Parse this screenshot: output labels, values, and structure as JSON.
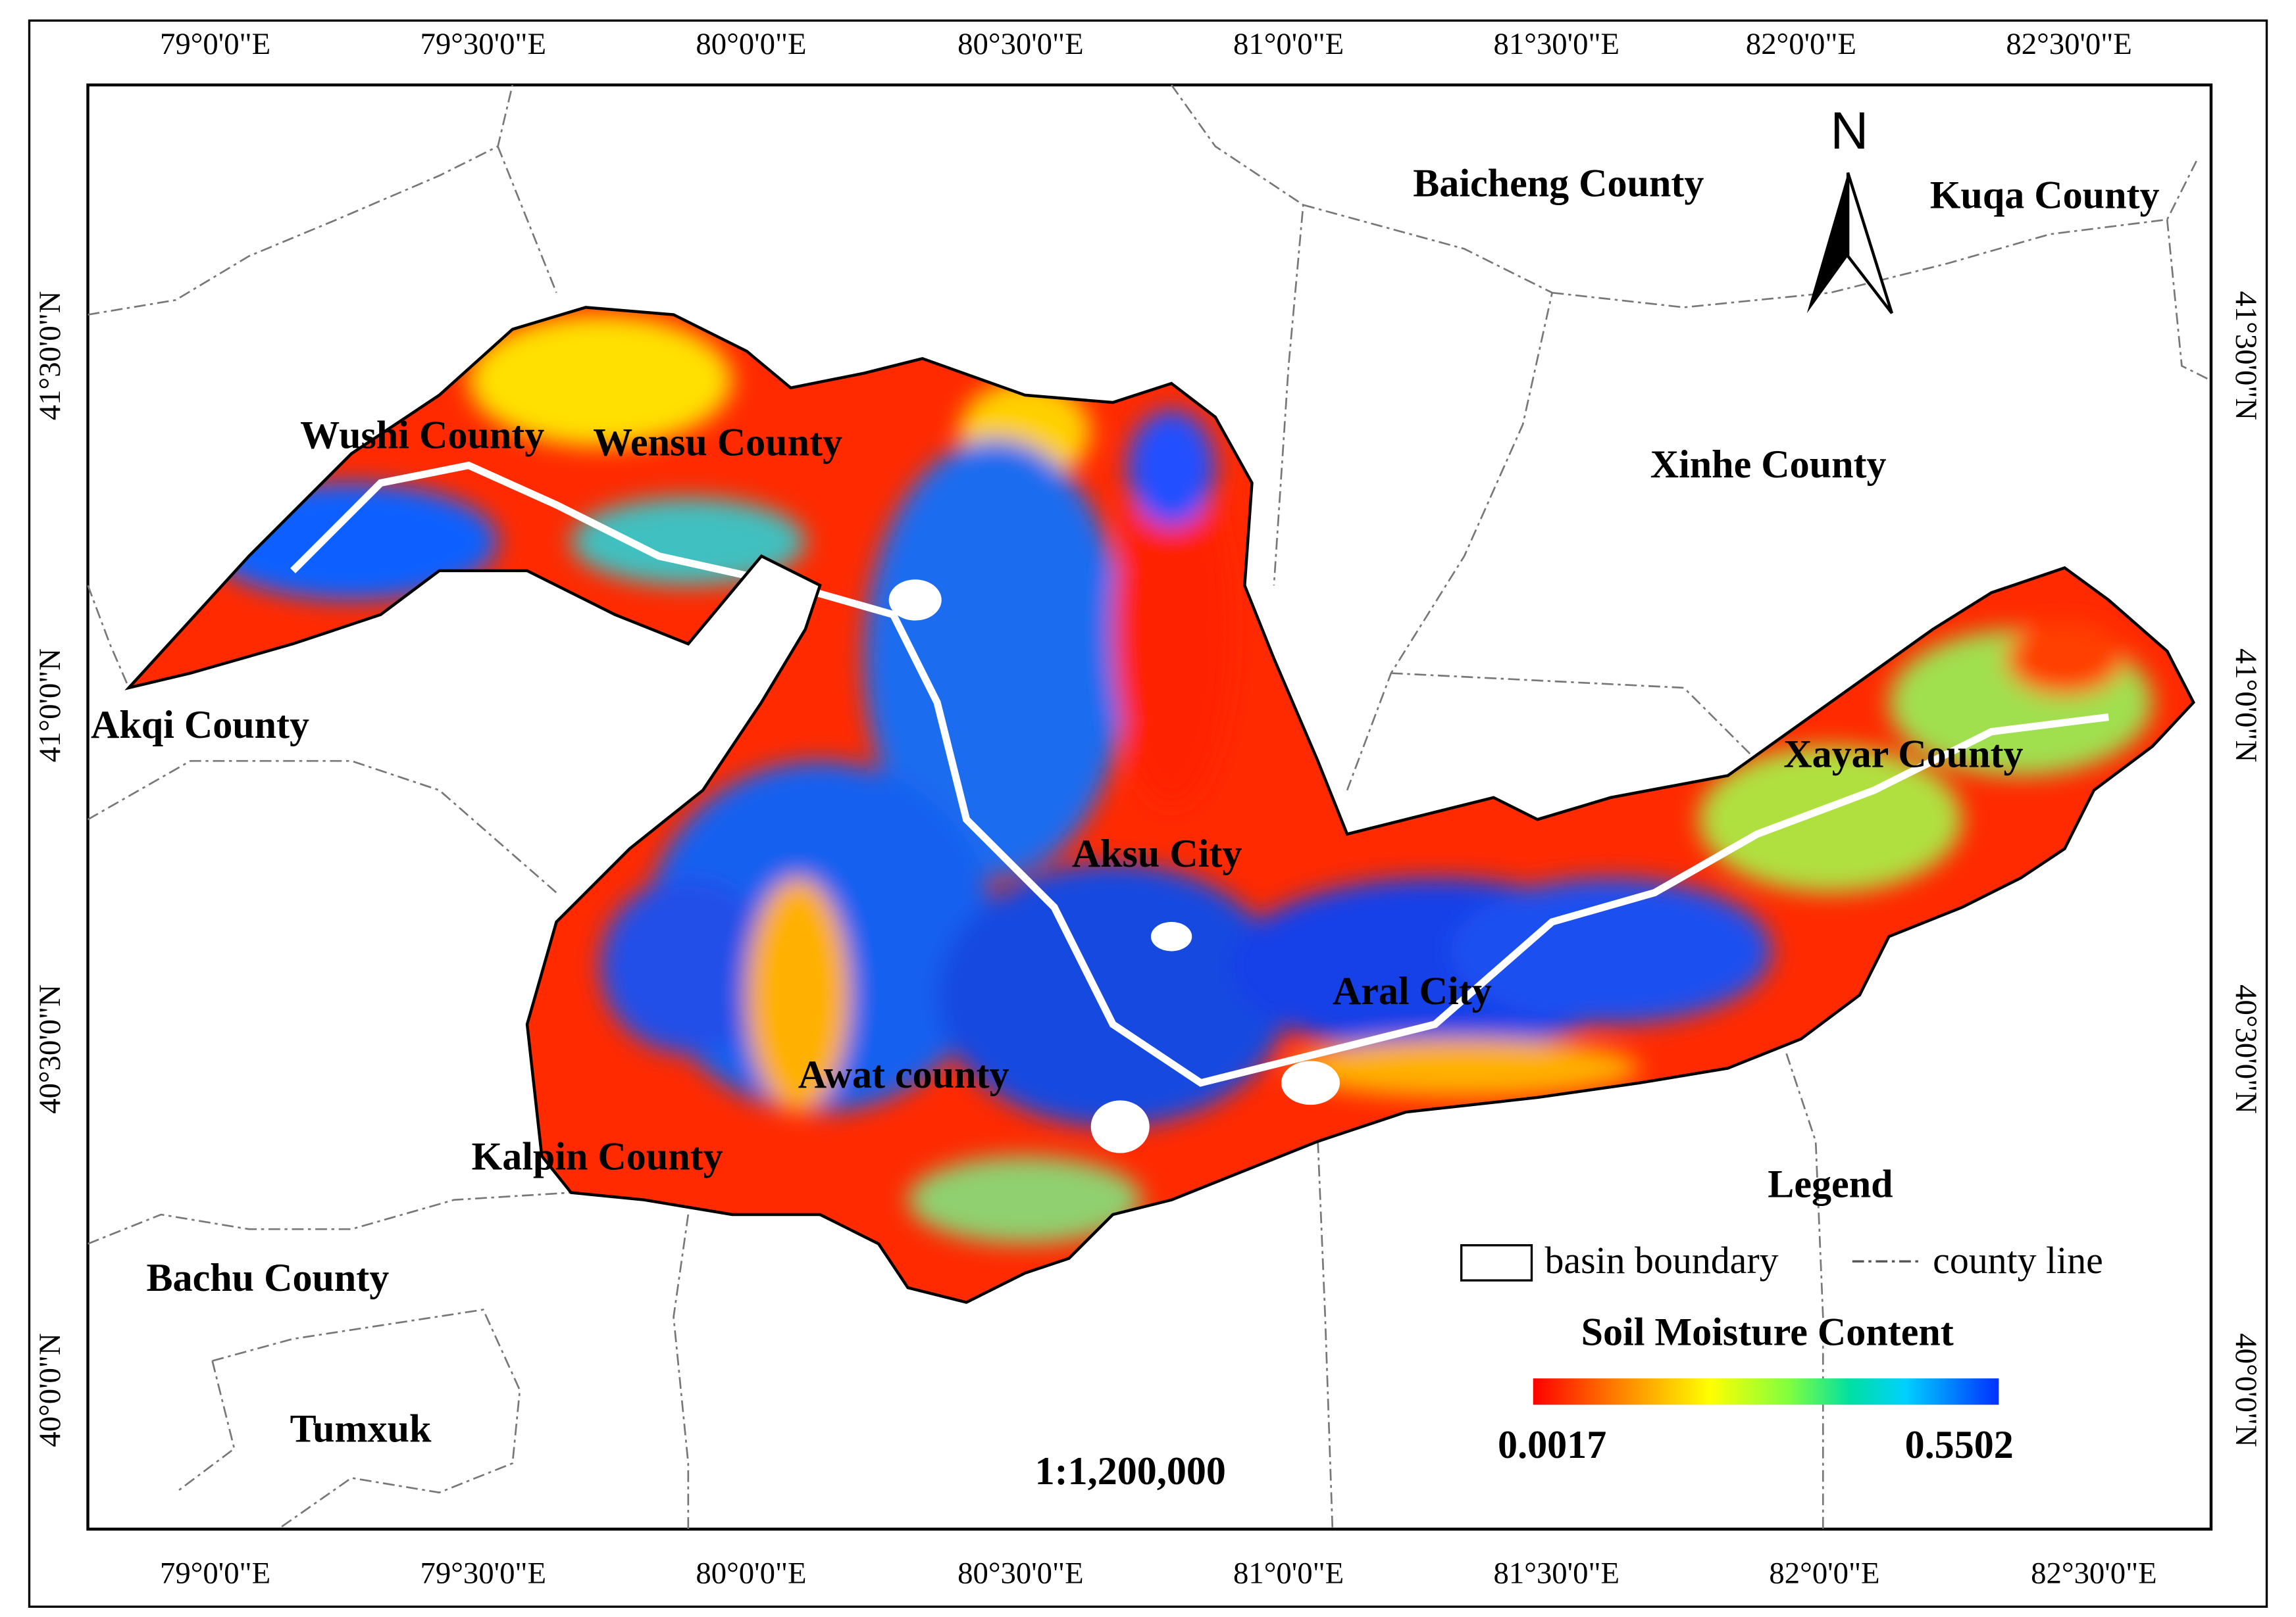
{
  "map": {
    "top_ticks": [
      "79°0'0\"E",
      "79°30'0\"E",
      "80°0'0\"E",
      "80°30'0\"E",
      "81°0'0\"E",
      "81°30'0\"E",
      "82°0'0\"E",
      "82°30'0\"E"
    ],
    "bottom_ticks": [
      "79°0'0\"E",
      "79°30'0\"E",
      "80°0'0\"E",
      "80°30'0\"E",
      "81°0'0\"E",
      "81°30'0\"E",
      "82°0'0\"E",
      "82°30'0\"E"
    ],
    "left_ticks": [
      "41°30'0\"N",
      "41°0'0\"N",
      "40°30'0\"N",
      "40°0'0\"N"
    ],
    "right_ticks": [
      "41°30'0\"N",
      "41°0'0\"N",
      "40°30'0\"N",
      "40°0'0\"N"
    ],
    "labels": [
      "Baicheng County",
      "Kuqa County",
      "Wushi County",
      "Wensu County",
      "Xinhe County",
      "Akqi County",
      "Xayar County",
      "Aksu City",
      "Aral City",
      "Awat county",
      "Kalpin County",
      "Bachu County",
      "Tumxuk"
    ],
    "north_arrow": "N",
    "scale": "1:1,200,000",
    "legend": {
      "title": "Legend",
      "items": [
        "basin boundary",
        "county line"
      ],
      "colorbar": {
        "title": "Soil Moisture Content",
        "min": 0.0017,
        "max": 0.5502
      }
    }
  }
}
